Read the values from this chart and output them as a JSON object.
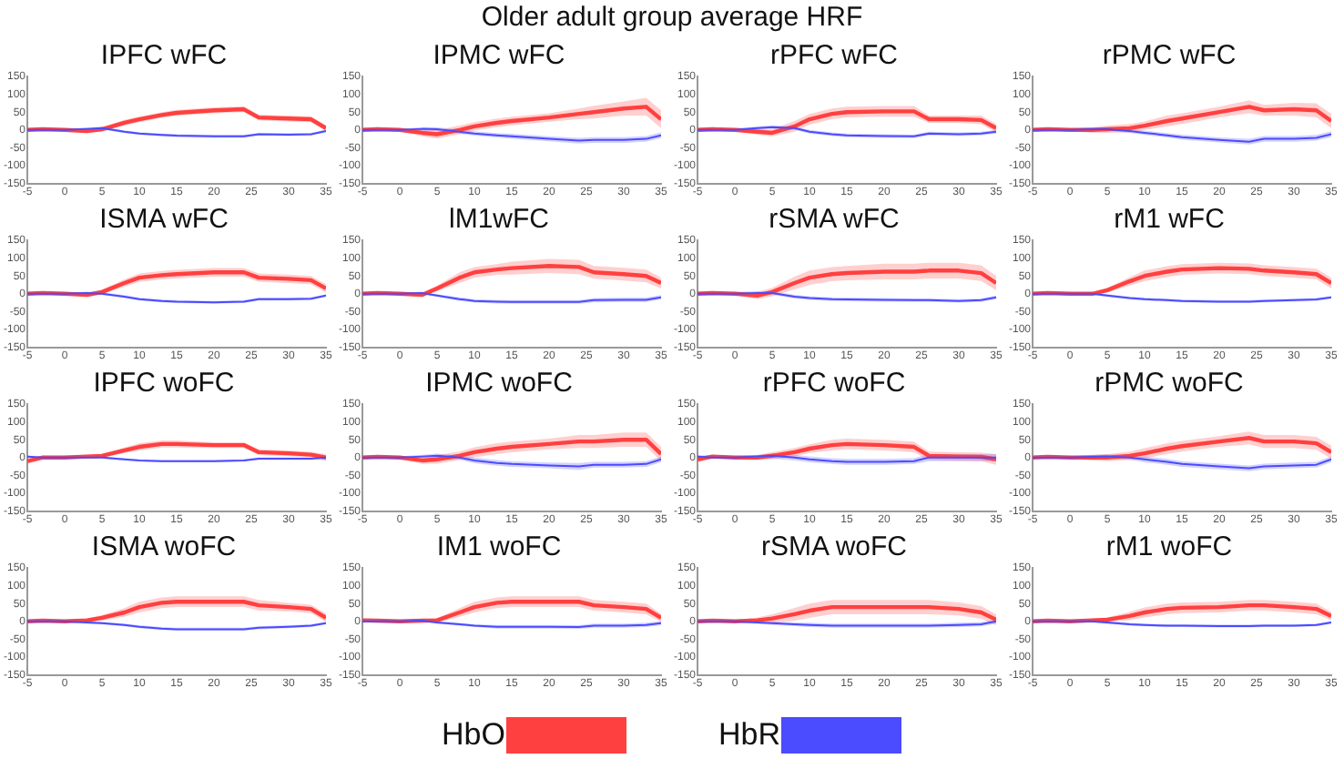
{
  "chart_data": [
    {
      "type": "other",
      "title": "Older adult group average HRF"
    },
    {
      "type": "line",
      "title": "IPFC wFC",
      "x": [
        -5,
        -3,
        0,
        3,
        5,
        8,
        10,
        13,
        15,
        20,
        24,
        26,
        30,
        33,
        35
      ],
      "xlim": [
        -5,
        35
      ],
      "xticks": [
        -5,
        0,
        5,
        10,
        15,
        20,
        25,
        30,
        35
      ],
      "ylim": [
        -150,
        150
      ],
      "yticks": [
        -150,
        -100,
        -50,
        0,
        50,
        100,
        150
      ],
      "legend": "bottom",
      "series": [
        {
          "name": "HbO",
          "color": "#ff4040",
          "values": [
            0,
            2,
            0,
            -3,
            2,
            20,
            30,
            42,
            48,
            55,
            58,
            35,
            32,
            30,
            5
          ],
          "lower": [
            -5,
            -3,
            -3,
            -8,
            -4,
            12,
            22,
            34,
            40,
            47,
            50,
            27,
            24,
            22,
            -3
          ],
          "upper": [
            5,
            7,
            3,
            2,
            8,
            28,
            38,
            50,
            56,
            63,
            66,
            43,
            40,
            38,
            13
          ]
        },
        {
          "name": "HbR",
          "color": "#4b4bff",
          "values": [
            0,
            0,
            0,
            3,
            5,
            -5,
            -10,
            -14,
            -16,
            -18,
            -18,
            -12,
            -13,
            -12,
            -3
          ],
          "lower": [
            -4,
            -4,
            -4,
            -1,
            1,
            -9,
            -14,
            -18,
            -20,
            -22,
            -22,
            -16,
            -17,
            -16,
            -7
          ],
          "upper": [
            4,
            4,
            4,
            7,
            9,
            -1,
            -6,
            -10,
            -12,
            -14,
            -14,
            -8,
            -9,
            -8,
            1
          ]
        }
      ]
    },
    {
      "type": "line",
      "title": "IPMC wFC",
      "x": [
        -5,
        -3,
        0,
        3,
        5,
        8,
        10,
        13,
        15,
        20,
        24,
        26,
        30,
        33,
        35
      ],
      "xlim": [
        -5,
        35
      ],
      "xticks": [
        -5,
        0,
        5,
        10,
        15,
        20,
        25,
        30,
        35
      ],
      "ylim": [
        -150,
        150
      ],
      "yticks": [
        -150,
        -100,
        -50,
        0,
        50,
        100,
        150
      ],
      "series": [
        {
          "color": "#ff4040",
          "values": [
            0,
            2,
            0,
            -8,
            -12,
            0,
            10,
            20,
            25,
            35,
            45,
            50,
            60,
            65,
            30
          ],
          "lower": [
            -6,
            -4,
            -4,
            -18,
            -24,
            -12,
            -2,
            8,
            13,
            23,
            30,
            32,
            40,
            40,
            5
          ],
          "upper": [
            6,
            8,
            4,
            2,
            0,
            12,
            22,
            32,
            37,
            47,
            60,
            68,
            80,
            90,
            55
          ]
        },
        {
          "color": "#4b4bff",
          "values": [
            0,
            0,
            0,
            3,
            2,
            -5,
            -10,
            -15,
            -18,
            -25,
            -30,
            -28,
            -28,
            -25,
            -15
          ],
          "lower": [
            -5,
            -5,
            -3,
            -2,
            -4,
            -11,
            -16,
            -21,
            -25,
            -32,
            -38,
            -36,
            -36,
            -33,
            -23
          ],
          "upper": [
            5,
            5,
            3,
            8,
            8,
            1,
            -4,
            -9,
            -11,
            -18,
            -22,
            -20,
            -20,
            -17,
            -7
          ]
        }
      ]
    },
    {
      "type": "line",
      "title": "rPFC wFC",
      "x": [
        -5,
        -3,
        0,
        3,
        5,
        8,
        10,
        13,
        15,
        20,
        24,
        26,
        30,
        33,
        35
      ],
      "xlim": [
        -5,
        35
      ],
      "xticks": [
        -5,
        0,
        5,
        10,
        15,
        20,
        25,
        30,
        35
      ],
      "ylim": [
        -150,
        150
      ],
      "yticks": [
        -150,
        -100,
        -50,
        0,
        50,
        100,
        150
      ],
      "series": [
        {
          "color": "#ff4040",
          "values": [
            0,
            2,
            0,
            -5,
            -8,
            10,
            30,
            45,
            50,
            52,
            52,
            30,
            30,
            28,
            5
          ],
          "lower": [
            -6,
            -4,
            -3,
            -13,
            -18,
            -5,
            15,
            30,
            35,
            37,
            37,
            20,
            20,
            16,
            -7
          ],
          "upper": [
            6,
            8,
            3,
            3,
            2,
            25,
            45,
            60,
            65,
            67,
            67,
            40,
            40,
            40,
            17
          ]
        },
        {
          "color": "#4b4bff",
          "values": [
            0,
            0,
            0,
            5,
            8,
            5,
            -5,
            -12,
            -15,
            -17,
            -18,
            -10,
            -12,
            -10,
            -5
          ],
          "lower": [
            -5,
            -5,
            -5,
            0,
            3,
            0,
            -10,
            -17,
            -20,
            -22,
            -23,
            -15,
            -17,
            -15,
            -10
          ],
          "upper": [
            5,
            5,
            5,
            10,
            13,
            10,
            0,
            -7,
            -10,
            -12,
            -13,
            -5,
            -7,
            -5,
            0
          ]
        }
      ]
    },
    {
      "type": "line",
      "title": "rPMC wFC",
      "x": [
        -5,
        -3,
        0,
        3,
        5,
        8,
        10,
        13,
        15,
        20,
        24,
        26,
        30,
        33,
        35
      ],
      "xlim": [
        -5,
        35
      ],
      "xticks": [
        -5,
        0,
        5,
        10,
        15,
        20,
        25,
        30,
        35
      ],
      "ylim": [
        -150,
        150
      ],
      "yticks": [
        -150,
        -100,
        -50,
        0,
        50,
        100,
        150
      ],
      "series": [
        {
          "color": "#ff4040",
          "values": [
            0,
            2,
            0,
            0,
            2,
            5,
            12,
            25,
            32,
            50,
            65,
            55,
            58,
            55,
            25
          ],
          "lower": [
            -5,
            -3,
            -3,
            -8,
            -8,
            -7,
            0,
            10,
            17,
            35,
            47,
            40,
            40,
            35,
            5
          ],
          "upper": [
            5,
            7,
            3,
            8,
            12,
            17,
            24,
            40,
            47,
            65,
            83,
            70,
            76,
            75,
            45
          ]
        },
        {
          "color": "#4b4bff",
          "values": [
            0,
            0,
            0,
            2,
            2,
            -3,
            -8,
            -15,
            -20,
            -28,
            -33,
            -25,
            -25,
            -22,
            -12
          ],
          "lower": [
            -5,
            -5,
            -3,
            -3,
            -3,
            -8,
            -14,
            -21,
            -27,
            -35,
            -41,
            -33,
            -33,
            -30,
            -20
          ],
          "upper": [
            5,
            5,
            3,
            7,
            7,
            2,
            -2,
            -9,
            -13,
            -21,
            -25,
            -17,
            -17,
            -14,
            -4
          ]
        }
      ]
    },
    {
      "type": "line",
      "title": "ISMA wFC",
      "x": [
        -5,
        -3,
        0,
        3,
        5,
        8,
        10,
        13,
        15,
        20,
        24,
        26,
        30,
        33,
        35
      ],
      "xlim": [
        -5,
        35
      ],
      "xticks": [
        -5,
        0,
        5,
        10,
        15,
        20,
        25,
        30,
        35
      ],
      "ylim": [
        -150,
        150
      ],
      "yticks": [
        -150,
        -100,
        -50,
        0,
        50,
        100,
        150
      ],
      "series": [
        {
          "color": "#ff4040",
          "values": [
            0,
            2,
            0,
            -3,
            5,
            30,
            45,
            52,
            55,
            60,
            60,
            45,
            42,
            38,
            15
          ],
          "lower": [
            -5,
            -3,
            -3,
            -8,
            -1,
            20,
            33,
            40,
            43,
            48,
            48,
            33,
            30,
            26,
            3
          ],
          "upper": [
            5,
            7,
            3,
            2,
            11,
            40,
            57,
            64,
            67,
            72,
            72,
            57,
            54,
            50,
            27
          ]
        },
        {
          "color": "#4b4bff",
          "values": [
            0,
            0,
            0,
            2,
            0,
            -8,
            -15,
            -20,
            -22,
            -24,
            -22,
            -15,
            -15,
            -14,
            -5
          ],
          "lower": [
            -4,
            -4,
            -4,
            -2,
            -4,
            -12,
            -19,
            -24,
            -26,
            -28,
            -26,
            -19,
            -19,
            -18,
            -9
          ],
          "upper": [
            4,
            4,
            4,
            6,
            4,
            -4,
            -11,
            -16,
            -18,
            -20,
            -18,
            -11,
            -11,
            -10,
            -1
          ]
        }
      ]
    },
    {
      "type": "line",
      "title": "lM1wFC",
      "x": [
        -5,
        -3,
        0,
        3,
        5,
        8,
        10,
        13,
        15,
        20,
        24,
        26,
        30,
        33,
        35
      ],
      "xlim": [
        -5,
        35
      ],
      "xticks": [
        -5,
        0,
        5,
        10,
        15,
        20,
        25,
        30,
        35
      ],
      "ylim": [
        -150,
        150
      ],
      "yticks": [
        -150,
        -100,
        -50,
        0,
        50,
        100,
        150
      ],
      "series": [
        {
          "color": "#ff4040",
          "values": [
            0,
            2,
            0,
            -3,
            15,
            45,
            60,
            68,
            72,
            78,
            75,
            60,
            55,
            50,
            30
          ],
          "lower": [
            -5,
            -3,
            -3,
            -8,
            7,
            30,
            45,
            53,
            54,
            58,
            55,
            42,
            37,
            32,
            15
          ],
          "upper": [
            5,
            7,
            3,
            2,
            23,
            60,
            75,
            83,
            90,
            98,
            95,
            78,
            73,
            68,
            45
          ]
        },
        {
          "color": "#4b4bff",
          "values": [
            0,
            0,
            0,
            2,
            -5,
            -15,
            -20,
            -22,
            -23,
            -23,
            -23,
            -18,
            -17,
            -17,
            -10
          ],
          "lower": [
            -4,
            -4,
            -3,
            -2,
            -9,
            -20,
            -25,
            -27,
            -28,
            -28,
            -28,
            -24,
            -23,
            -23,
            -16
          ],
          "upper": [
            4,
            4,
            3,
            6,
            -1,
            -10,
            -15,
            -17,
            -18,
            -18,
            -18,
            -12,
            -11,
            -11,
            -4
          ]
        }
      ]
    },
    {
      "type": "line",
      "title": "rSMA wFC",
      "x": [
        -5,
        -3,
        0,
        3,
        5,
        8,
        10,
        13,
        15,
        20,
        24,
        26,
        30,
        33,
        35
      ],
      "xlim": [
        -5,
        35
      ],
      "xticks": [
        -5,
        0,
        5,
        10,
        15,
        20,
        25,
        30,
        35
      ],
      "ylim": [
        -150,
        150
      ],
      "yticks": [
        -150,
        -100,
        -50,
        0,
        50,
        100,
        150
      ],
      "series": [
        {
          "color": "#ff4040",
          "values": [
            0,
            2,
            0,
            -5,
            5,
            30,
            45,
            55,
            58,
            62,
            62,
            65,
            65,
            58,
            30
          ],
          "lower": [
            -6,
            -4,
            -3,
            -15,
            -7,
            12,
            25,
            35,
            38,
            40,
            40,
            43,
            43,
            36,
            10
          ],
          "upper": [
            6,
            8,
            3,
            5,
            17,
            48,
            65,
            75,
            78,
            84,
            84,
            87,
            87,
            80,
            50
          ]
        },
        {
          "color": "#4b4bff",
          "values": [
            0,
            0,
            0,
            2,
            2,
            -8,
            -12,
            -15,
            -16,
            -17,
            -18,
            -18,
            -20,
            -18,
            -10
          ],
          "lower": [
            -5,
            -5,
            -5,
            -3,
            -3,
            -13,
            -17,
            -20,
            -21,
            -22,
            -23,
            -23,
            -25,
            -23,
            -15
          ],
          "upper": [
            5,
            5,
            5,
            7,
            7,
            -3,
            -7,
            -10,
            -11,
            -12,
            -13,
            -13,
            -15,
            -13,
            -5
          ]
        }
      ]
    },
    {
      "type": "line",
      "title": "rM1 wFC",
      "x": [
        -5,
        -3,
        0,
        3,
        5,
        8,
        10,
        13,
        15,
        20,
        24,
        26,
        30,
        33,
        35
      ],
      "xlim": [
        -5,
        35
      ],
      "xticks": [
        -5,
        0,
        5,
        10,
        15,
        20,
        25,
        30,
        35
      ],
      "ylim": [
        -150,
        150
      ],
      "yticks": [
        -150,
        -100,
        -50,
        0,
        50,
        100,
        150
      ],
      "series": [
        {
          "color": "#ff4040",
          "values": [
            0,
            2,
            0,
            0,
            10,
            35,
            50,
            62,
            68,
            72,
            70,
            65,
            60,
            55,
            30
          ],
          "lower": [
            -4,
            -2,
            -3,
            -4,
            4,
            23,
            35,
            47,
            53,
            57,
            55,
            50,
            45,
            40,
            15
          ],
          "upper": [
            4,
            6,
            3,
            4,
            16,
            47,
            65,
            77,
            83,
            87,
            85,
            80,
            75,
            70,
            45
          ]
        },
        {
          "color": "#4b4bff",
          "values": [
            0,
            0,
            0,
            0,
            -5,
            -12,
            -15,
            -18,
            -20,
            -22,
            -22,
            -20,
            -18,
            -16,
            -10
          ],
          "lower": [
            -4,
            -4,
            -4,
            -4,
            -9,
            -16,
            -19,
            -22,
            -24,
            -26,
            -26,
            -24,
            -22,
            -20,
            -14
          ],
          "upper": [
            4,
            4,
            4,
            4,
            -1,
            -8,
            -11,
            -14,
            -16,
            -18,
            -18,
            -16,
            -14,
            -12,
            -6
          ]
        }
      ]
    },
    {
      "type": "line",
      "title": "IPFC woFC",
      "x": [
        -5,
        -3,
        0,
        3,
        5,
        8,
        10,
        13,
        15,
        20,
        24,
        26,
        30,
        33,
        35
      ],
      "xlim": [
        -5,
        35
      ],
      "xticks": [
        -5,
        0,
        5,
        10,
        15,
        20,
        25,
        30,
        35
      ],
      "ylim": [
        -150,
        150
      ],
      "yticks": [
        -150,
        -100,
        -50,
        0,
        50,
        100,
        150
      ],
      "series": [
        {
          "color": "#ff4040",
          "values": [
            -10,
            0,
            0,
            3,
            5,
            20,
            30,
            38,
            38,
            35,
            35,
            15,
            12,
            8,
            0
          ],
          "lower": [
            -18,
            -5,
            -5,
            -2,
            0,
            12,
            20,
            28,
            28,
            27,
            27,
            7,
            4,
            0,
            -10
          ],
          "upper": [
            -2,
            5,
            5,
            8,
            10,
            28,
            40,
            48,
            48,
            43,
            43,
            23,
            20,
            16,
            10
          ]
        },
        {
          "color": "#4b4bff",
          "values": [
            3,
            0,
            0,
            0,
            0,
            -5,
            -8,
            -10,
            -10,
            -10,
            -8,
            -3,
            -3,
            -3,
            0
          ],
          "lower": [
            0,
            -3,
            -3,
            -3,
            -3,
            -8,
            -11,
            -13,
            -13,
            -13,
            -11,
            -6,
            -6,
            -6,
            -3
          ],
          "upper": [
            6,
            3,
            3,
            3,
            3,
            -2,
            -5,
            -7,
            -7,
            -7,
            -5,
            0,
            0,
            0,
            3
          ]
        }
      ]
    },
    {
      "type": "line",
      "title": "IPMC woFC",
      "x": [
        -5,
        -3,
        0,
        3,
        5,
        8,
        10,
        13,
        15,
        20,
        24,
        26,
        30,
        33,
        35
      ],
      "xlim": [
        -5,
        35
      ],
      "xticks": [
        -5,
        0,
        5,
        10,
        15,
        20,
        25,
        30,
        35
      ],
      "ylim": [
        -150,
        150
      ],
      "yticks": [
        -150,
        -100,
        -50,
        0,
        50,
        100,
        150
      ],
      "series": [
        {
          "color": "#ff4040",
          "values": [
            0,
            2,
            0,
            -8,
            -5,
            5,
            15,
            25,
            30,
            38,
            45,
            45,
            50,
            50,
            10
          ],
          "lower": [
            -5,
            -3,
            -3,
            -18,
            -17,
            -7,
            1,
            10,
            15,
            23,
            27,
            27,
            30,
            30,
            -10
          ],
          "upper": [
            5,
            7,
            3,
            2,
            7,
            17,
            29,
            40,
            45,
            53,
            63,
            63,
            70,
            70,
            30
          ]
        },
        {
          "color": "#4b4bff",
          "values": [
            0,
            0,
            0,
            3,
            5,
            0,
            -8,
            -15,
            -18,
            -22,
            -25,
            -20,
            -20,
            -18,
            -5
          ],
          "lower": [
            -4,
            -4,
            -3,
            -2,
            -1,
            -6,
            -16,
            -23,
            -26,
            -30,
            -35,
            -28,
            -28,
            -26,
            -13
          ],
          "upper": [
            4,
            4,
            3,
            8,
            11,
            6,
            0,
            -7,
            -10,
            -14,
            -15,
            -12,
            -12,
            -10,
            3
          ]
        }
      ]
    },
    {
      "type": "line",
      "title": "rPFC woFC",
      "x": [
        -5,
        -3,
        0,
        3,
        5,
        8,
        10,
        13,
        15,
        20,
        24,
        26,
        30,
        33,
        35
      ],
      "xlim": [
        -5,
        35
      ],
      "xticks": [
        -5,
        0,
        5,
        10,
        15,
        20,
        25,
        30,
        35
      ],
      "ylim": [
        -150,
        150
      ],
      "yticks": [
        -150,
        -100,
        -50,
        0,
        50,
        100,
        150
      ],
      "series": [
        {
          "color": "#ff4040",
          "values": [
            -5,
            3,
            0,
            0,
            5,
            15,
            25,
            35,
            38,
            35,
            30,
            5,
            3,
            2,
            -5
          ],
          "lower": [
            -13,
            -2,
            -3,
            -6,
            -5,
            3,
            13,
            20,
            23,
            20,
            15,
            -7,
            -9,
            -10,
            -20
          ],
          "upper": [
            3,
            8,
            3,
            6,
            15,
            27,
            37,
            50,
            53,
            50,
            45,
            17,
            15,
            14,
            10
          ]
        },
        {
          "color": "#4b4bff",
          "values": [
            3,
            0,
            0,
            3,
            5,
            0,
            -5,
            -10,
            -12,
            -12,
            -10,
            0,
            0,
            0,
            0
          ],
          "lower": [
            -1,
            -4,
            -3,
            -2,
            -3,
            -8,
            -13,
            -18,
            -20,
            -20,
            -18,
            -10,
            -10,
            -10,
            -10
          ],
          "upper": [
            7,
            4,
            3,
            8,
            13,
            8,
            3,
            -2,
            -4,
            -4,
            -2,
            10,
            10,
            10,
            10
          ]
        }
      ]
    },
    {
      "type": "line",
      "title": "rPMC woFC",
      "x": [
        -5,
        -3,
        0,
        3,
        5,
        8,
        10,
        13,
        15,
        20,
        24,
        26,
        30,
        33,
        35
      ],
      "xlim": [
        -5,
        35
      ],
      "xticks": [
        -5,
        0,
        5,
        10,
        15,
        20,
        25,
        30,
        35
      ],
      "ylim": [
        -150,
        150
      ],
      "yticks": [
        -150,
        -100,
        -50,
        0,
        50,
        100,
        150
      ],
      "series": [
        {
          "color": "#ff4040",
          "values": [
            0,
            2,
            0,
            0,
            0,
            5,
            12,
            25,
            32,
            45,
            55,
            45,
            45,
            40,
            15
          ],
          "lower": [
            -5,
            -3,
            -3,
            -8,
            -10,
            -7,
            -2,
            10,
            17,
            30,
            37,
            27,
            27,
            22,
            -3
          ],
          "upper": [
            5,
            7,
            3,
            8,
            10,
            17,
            26,
            40,
            47,
            60,
            73,
            63,
            63,
            58,
            33
          ]
        },
        {
          "color": "#4b4bff",
          "values": [
            0,
            0,
            0,
            2,
            3,
            0,
            -5,
            -12,
            -18,
            -25,
            -30,
            -25,
            -22,
            -20,
            -5
          ],
          "lower": [
            -4,
            -4,
            -3,
            -3,
            -3,
            -6,
            -13,
            -20,
            -26,
            -33,
            -38,
            -33,
            -30,
            -28,
            -13
          ],
          "upper": [
            4,
            4,
            3,
            7,
            9,
            6,
            3,
            -4,
            -10,
            -17,
            -22,
            -17,
            -14,
            -12,
            3
          ]
        }
      ]
    },
    {
      "type": "line",
      "title": "ISMA woFC",
      "x": [
        -5,
        -3,
        0,
        3,
        5,
        8,
        10,
        13,
        15,
        20,
        24,
        26,
        30,
        33,
        35
      ],
      "xlim": [
        -5,
        35
      ],
      "xticks": [
        -5,
        0,
        5,
        10,
        15,
        20,
        25,
        30,
        35
      ],
      "ylim": [
        -150,
        150
      ],
      "yticks": [
        -150,
        -100,
        -50,
        0,
        50,
        100,
        150
      ],
      "series": [
        {
          "color": "#ff4040",
          "values": [
            0,
            2,
            0,
            3,
            10,
            25,
            40,
            52,
            55,
            55,
            55,
            45,
            40,
            35,
            10
          ],
          "lower": [
            -5,
            -3,
            -3,
            -2,
            2,
            13,
            25,
            37,
            40,
            40,
            40,
            30,
            28,
            23,
            -2
          ],
          "upper": [
            5,
            7,
            3,
            8,
            18,
            37,
            55,
            67,
            70,
            70,
            70,
            60,
            52,
            47,
            22
          ]
        },
        {
          "color": "#4b4bff",
          "values": [
            0,
            0,
            0,
            -3,
            -5,
            -10,
            -15,
            -20,
            -22,
            -22,
            -22,
            -18,
            -15,
            -12,
            -5
          ],
          "lower": [
            -4,
            -4,
            -4,
            -7,
            -9,
            -14,
            -19,
            -24,
            -26,
            -26,
            -26,
            -22,
            -19,
            -16,
            -9
          ],
          "upper": [
            4,
            4,
            4,
            1,
            -1,
            -6,
            -11,
            -16,
            -18,
            -18,
            -18,
            -14,
            -11,
            -8,
            -1
          ]
        }
      ]
    },
    {
      "type": "line",
      "title": "IM1 woFC",
      "x": [
        -5,
        -3,
        0,
        3,
        5,
        8,
        10,
        13,
        15,
        20,
        24,
        26,
        30,
        33,
        35
      ],
      "xlim": [
        -5,
        35
      ],
      "xticks": [
        -5,
        0,
        5,
        10,
        15,
        20,
        25,
        30,
        35
      ],
      "ylim": [
        -150,
        150
      ],
      "yticks": [
        -150,
        -100,
        -50,
        0,
        50,
        100,
        150
      ],
      "series": [
        {
          "color": "#ff4040",
          "values": [
            3,
            2,
            0,
            2,
            3,
            25,
            40,
            52,
            55,
            55,
            55,
            45,
            40,
            35,
            10
          ],
          "lower": [
            -2,
            -3,
            -3,
            -3,
            -3,
            13,
            25,
            37,
            40,
            40,
            40,
            30,
            25,
            20,
            -2
          ],
          "upper": [
            8,
            7,
            3,
            7,
            9,
            37,
            55,
            67,
            70,
            70,
            70,
            60,
            55,
            50,
            22
          ]
        },
        {
          "color": "#4b4bff",
          "values": [
            0,
            0,
            0,
            2,
            -3,
            -8,
            -12,
            -15,
            -15,
            -15,
            -16,
            -12,
            -12,
            -10,
            -5
          ],
          "lower": [
            -4,
            -4,
            -3,
            -2,
            -7,
            -12,
            -16,
            -20,
            -20,
            -20,
            -21,
            -18,
            -18,
            -16,
            -11
          ],
          "upper": [
            4,
            4,
            3,
            6,
            1,
            -4,
            -8,
            -10,
            -10,
            -10,
            -11,
            -6,
            -6,
            -4,
            1
          ]
        }
      ]
    },
    {
      "type": "line",
      "title": "rSMA woFC",
      "x": [
        -5,
        -3,
        0,
        3,
        5,
        8,
        10,
        13,
        15,
        20,
        24,
        26,
        30,
        33,
        35
      ],
      "xlim": [
        -5,
        35
      ],
      "xticks": [
        -5,
        0,
        5,
        10,
        15,
        20,
        25,
        30,
        35
      ],
      "ylim": [
        -150,
        150
      ],
      "yticks": [
        -150,
        -100,
        -50,
        0,
        50,
        100,
        150
      ],
      "series": [
        {
          "color": "#ff4040",
          "values": [
            0,
            2,
            0,
            3,
            8,
            20,
            30,
            40,
            40,
            40,
            40,
            40,
            35,
            25,
            5
          ],
          "lower": [
            -5,
            -3,
            -3,
            -5,
            -4,
            2,
            10,
            20,
            20,
            20,
            20,
            20,
            17,
            7,
            -10
          ],
          "upper": [
            5,
            7,
            3,
            11,
            20,
            38,
            50,
            60,
            60,
            60,
            60,
            60,
            53,
            43,
            20
          ]
        },
        {
          "color": "#4b4bff",
          "values": [
            0,
            0,
            0,
            -3,
            -5,
            -8,
            -10,
            -12,
            -12,
            -12,
            -12,
            -12,
            -10,
            -8,
            0
          ],
          "lower": [
            -4,
            -4,
            -3,
            -7,
            -10,
            -13,
            -16,
            -18,
            -18,
            -18,
            -18,
            -18,
            -16,
            -14,
            -6
          ],
          "upper": [
            4,
            4,
            3,
            1,
            0,
            -3,
            -4,
            -6,
            -6,
            -6,
            -6,
            -6,
            -4,
            -2,
            6
          ]
        }
      ]
    },
    {
      "type": "line",
      "title": "rM1 woFC",
      "x": [
        -5,
        -3,
        0,
        3,
        5,
        8,
        10,
        13,
        15,
        20,
        24,
        26,
        30,
        33,
        35
      ],
      "xlim": [
        -5,
        35
      ],
      "xticks": [
        -5,
        0,
        5,
        10,
        15,
        20,
        25,
        30,
        35
      ],
      "ylim": [
        -150,
        150
      ],
      "yticks": [
        -150,
        -100,
        -50,
        0,
        50,
        100,
        150
      ],
      "series": [
        {
          "color": "#ff4040",
          "values": [
            0,
            2,
            0,
            3,
            5,
            15,
            25,
            35,
            38,
            40,
            45,
            45,
            40,
            35,
            15
          ],
          "lower": [
            -5,
            -3,
            -3,
            -2,
            -1,
            3,
            11,
            20,
            23,
            25,
            30,
            30,
            25,
            20,
            3
          ],
          "upper": [
            5,
            7,
            3,
            8,
            11,
            27,
            39,
            50,
            53,
            55,
            60,
            60,
            55,
            50,
            27
          ]
        },
        {
          "color": "#4b4bff",
          "values": [
            0,
            0,
            0,
            0,
            -3,
            -8,
            -10,
            -12,
            -12,
            -13,
            -13,
            -12,
            -12,
            -10,
            -3
          ],
          "lower": [
            -4,
            -4,
            -4,
            -4,
            -7,
            -12,
            -14,
            -16,
            -16,
            -17,
            -17,
            -16,
            -16,
            -14,
            -7
          ],
          "upper": [
            4,
            4,
            4,
            4,
            1,
            -4,
            -6,
            -8,
            -8,
            -9,
            -9,
            -8,
            -8,
            -6,
            1
          ]
        }
      ]
    }
  ]
}
